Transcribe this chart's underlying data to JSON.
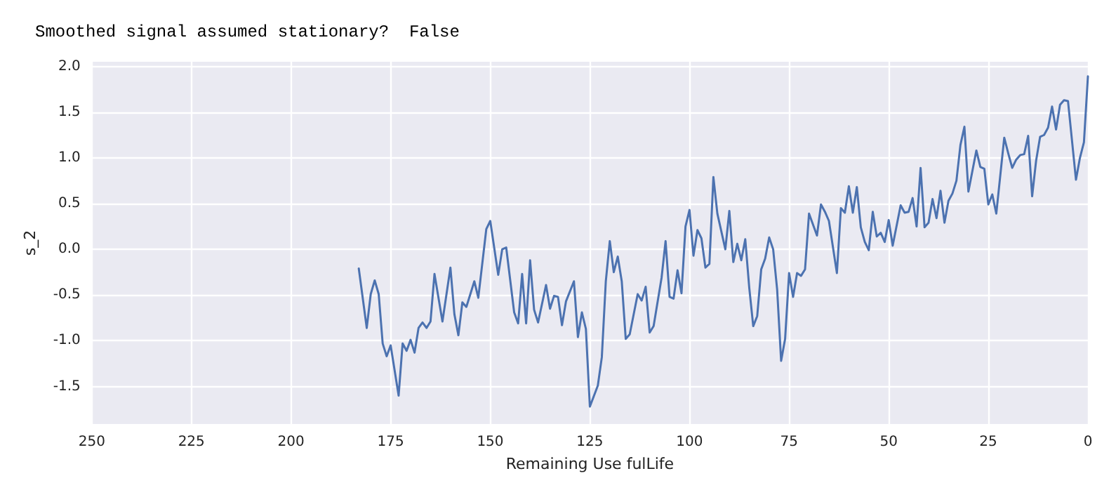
{
  "chart_data": {
    "type": "line",
    "title": "Smoothed signal assumed stationary?  False",
    "xlabel": "Remaining Use fulLife",
    "ylabel": "s_2",
    "x": [
      183,
      181,
      180,
      179,
      178,
      177,
      176,
      175,
      173,
      172,
      171,
      170,
      169,
      168,
      167,
      166,
      165,
      164,
      162,
      160,
      159,
      158,
      157,
      156,
      154,
      153,
      151,
      150,
      148,
      147,
      146,
      144,
      143,
      142,
      141,
      140,
      139,
      138,
      136,
      135,
      134,
      133,
      132,
      131,
      129,
      128,
      127,
      126,
      125,
      123,
      122,
      121,
      120,
      119,
      118,
      117,
      116,
      115,
      113,
      112,
      111,
      110,
      109,
      107,
      106,
      105,
      104,
      103,
      102,
      101,
      100,
      99,
      98,
      97,
      96,
      95,
      94,
      93,
      91,
      90,
      89,
      88,
      87,
      86,
      85,
      84,
      83,
      82,
      81,
      80,
      79,
      78,
      77,
      76,
      75,
      74,
      73,
      72,
      71,
      70,
      68,
      67,
      66,
      65,
      63,
      62,
      61,
      60,
      59,
      58,
      57,
      56,
      55,
      54,
      53,
      52,
      51,
      50,
      49,
      47,
      46,
      45,
      44,
      43,
      42,
      41,
      40,
      39,
      38,
      37,
      36,
      35,
      34,
      33,
      32,
      31,
      30,
      28,
      27,
      26,
      25,
      24,
      23,
      21,
      20,
      19,
      18,
      17,
      16,
      15,
      14,
      13,
      12,
      11,
      10,
      9,
      8,
      7,
      6,
      5,
      3,
      2,
      1,
      0
    ],
    "series": [
      {
        "color": "#4c72b0",
        "values": [
          -0.21,
          -0.86,
          -0.49,
          -0.34,
          -0.49,
          -1.03,
          -1.17,
          -1.05,
          -1.6,
          -1.03,
          -1.11,
          -0.99,
          -1.13,
          -0.86,
          -0.8,
          -0.86,
          -0.79,
          -0.27,
          -0.79,
          -0.2,
          -0.71,
          -0.94,
          -0.58,
          -0.63,
          -0.35,
          -0.53,
          0.22,
          0.31,
          -0.28,
          0.0,
          0.02,
          -0.69,
          -0.81,
          -0.27,
          -0.81,
          -0.12,
          -0.66,
          -0.8,
          -0.39,
          -0.65,
          -0.51,
          -0.52,
          -0.83,
          -0.57,
          -0.35,
          -0.96,
          -0.69,
          -0.87,
          -1.72,
          -1.49,
          -1.18,
          -0.35,
          0.09,
          -0.25,
          -0.08,
          -0.35,
          -0.98,
          -0.93,
          -0.49,
          -0.56,
          -0.41,
          -0.91,
          -0.84,
          -0.31,
          0.09,
          -0.52,
          -0.54,
          -0.23,
          -0.48,
          0.25,
          0.43,
          -0.07,
          0.21,
          0.12,
          -0.2,
          -0.16,
          0.79,
          0.39,
          0.0,
          0.42,
          -0.14,
          0.06,
          -0.12,
          0.11,
          -0.42,
          -0.84,
          -0.73,
          -0.22,
          -0.1,
          0.13,
          0.0,
          -0.44,
          -1.22,
          -0.98,
          -0.26,
          -0.52,
          -0.26,
          -0.29,
          -0.22,
          0.39,
          0.15,
          0.49,
          0.41,
          0.31,
          -0.26,
          0.45,
          0.4,
          0.69,
          0.4,
          0.68,
          0.24,
          0.08,
          -0.01,
          0.41,
          0.14,
          0.18,
          0.08,
          0.32,
          0.04,
          0.48,
          0.4,
          0.41,
          0.56,
          0.25,
          0.89,
          0.24,
          0.29,
          0.55,
          0.34,
          0.64,
          0.29,
          0.53,
          0.61,
          0.75,
          1.14,
          1.34,
          0.63,
          1.08,
          0.9,
          0.88,
          0.49,
          0.6,
          0.39,
          1.22,
          1.05,
          0.89,
          0.98,
          1.03,
          1.04,
          1.24,
          0.58,
          0.97,
          1.23,
          1.25,
          1.33,
          1.56,
          1.31,
          1.58,
          1.63,
          1.62,
          0.76,
          1.0,
          1.17,
          1.89
        ]
      }
    ],
    "xlim": [
      250,
      0
    ],
    "xticks": [
      250,
      225,
      200,
      175,
      150,
      125,
      100,
      75,
      50,
      25,
      0
    ],
    "ylim": [
      -1.91,
      2.05
    ],
    "yticks": [
      -1.5,
      {
        "value": -1,
        "label": "-1.0"
      },
      -0.5,
      {
        "value": 0,
        "label": "0.0"
      },
      0.5,
      {
        "value": 1,
        "label": "1.0"
      },
      1.5,
      {
        "value": 2,
        "label": "2.0"
      }
    ],
    "grid": true,
    "marker": "none",
    "line_style": "solid"
  }
}
